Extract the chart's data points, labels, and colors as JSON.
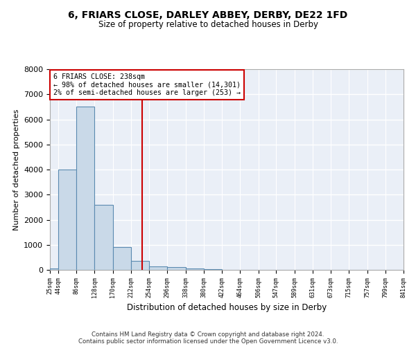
{
  "title": "6, FRIARS CLOSE, DARLEY ABBEY, DERBY, DE22 1FD",
  "subtitle": "Size of property relative to detached houses in Derby",
  "xlabel": "Distribution of detached houses by size in Derby",
  "ylabel": "Number of detached properties",
  "bin_edges": [
    25,
    44,
    86,
    128,
    170,
    212,
    254,
    296,
    338,
    380,
    422,
    464,
    506,
    547,
    589,
    631,
    673,
    715,
    757,
    799,
    841
  ],
  "bar_heights": [
    50,
    4000,
    6500,
    2600,
    900,
    350,
    150,
    100,
    50,
    20,
    10,
    5,
    0,
    0,
    0,
    0,
    0,
    0,
    0,
    0
  ],
  "bar_color": "#c9d9e8",
  "bar_edge_color": "#5a8ab0",
  "vline_x": 238,
  "vline_color": "#cc0000",
  "annotation_text": "6 FRIARS CLOSE: 238sqm\n← 98% of detached houses are smaller (14,301)\n2% of semi-detached houses are larger (253) →",
  "annotation_box_color": "#cc0000",
  "yticks": [
    0,
    1000,
    2000,
    3000,
    4000,
    5000,
    6000,
    7000,
    8000
  ],
  "ylim": [
    0,
    8000
  ],
  "tick_labels": [
    "25sqm",
    "44sqm",
    "86sqm",
    "128sqm",
    "170sqm",
    "212sqm",
    "254sqm",
    "296sqm",
    "338sqm",
    "380sqm",
    "422sqm",
    "464sqm",
    "506sqm",
    "547sqm",
    "589sqm",
    "631sqm",
    "673sqm",
    "715sqm",
    "757sqm",
    "799sqm",
    "841sqm"
  ],
  "background_color": "#eaeff7",
  "grid_color": "#ffffff",
  "footer_line1": "Contains HM Land Registry data © Crown copyright and database right 2024.",
  "footer_line2": "Contains public sector information licensed under the Open Government Licence v3.0."
}
